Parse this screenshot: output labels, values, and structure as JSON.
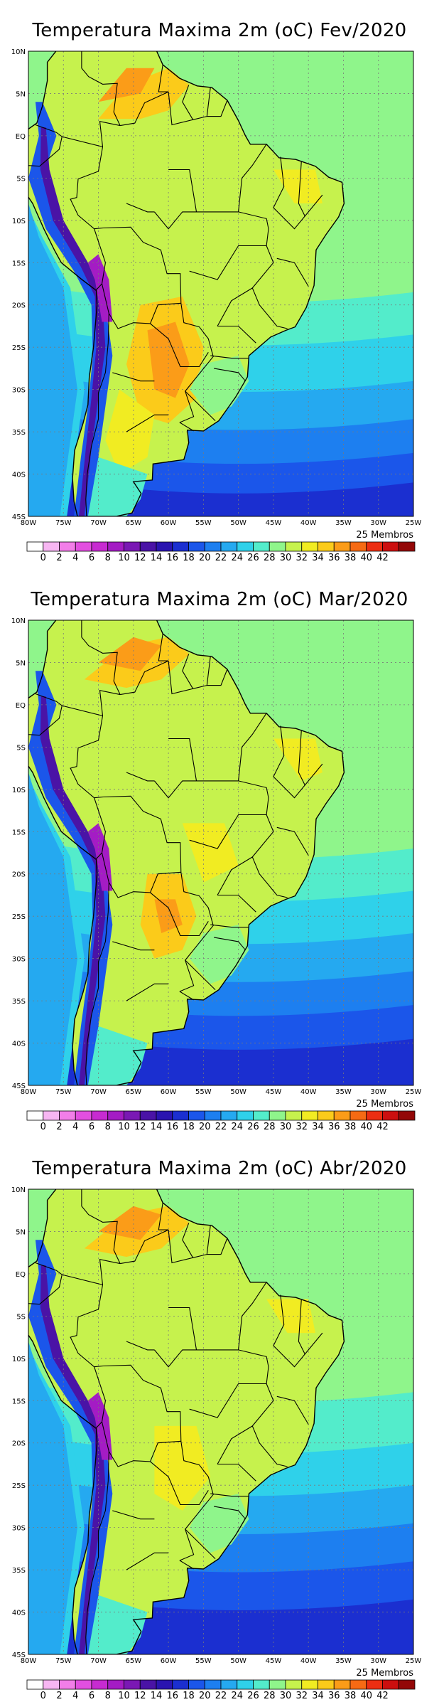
{
  "colorscale": {
    "tick_labels": [
      "0",
      "2",
      "4",
      "6",
      "8",
      "10",
      "12",
      "14",
      "16",
      "18",
      "20",
      "22",
      "24",
      "26",
      "28",
      "30",
      "32",
      "34",
      "36",
      "38",
      "40",
      "42"
    ],
    "colors": [
      "#ffffff",
      "#f7b6f2",
      "#f27ee8",
      "#e24fe0",
      "#c72bd1",
      "#a41cc4",
      "#7a18b4",
      "#4a13a6",
      "#2a14b0",
      "#1b2fd0",
      "#1b56ea",
      "#1d7ff0",
      "#25a9f0",
      "#2fd1ea",
      "#53eccb",
      "#8ff58b",
      "#c6f24d",
      "#f1ec22",
      "#fbcb1a",
      "#fb9c18",
      "#f66a14",
      "#ec2e12",
      "#cc0f0f",
      "#930707"
    ],
    "members_label": "25 Membros"
  },
  "lon_labels": [
    "80W",
    "75W",
    "70W",
    "65W",
    "60W",
    "55W",
    "50W",
    "45W",
    "40W",
    "35W",
    "30W",
    "25W"
  ],
  "lat_labels": [
    "10N",
    "5N",
    "EQ",
    "5S",
    "10S",
    "15S",
    "20S",
    "25S",
    "30S",
    "35S",
    "40S",
    "45S"
  ],
  "panels": [
    {
      "title": "Temperatura Maxima 2m (oC) Fev/2020",
      "variant": "feb"
    },
    {
      "title": "Temperatura Maxima 2m (oC) Mar/2020",
      "variant": "mar"
    },
    {
      "title": "Temperatura Maxima 2m (oC) Abr/2020",
      "variant": "apr"
    }
  ]
}
